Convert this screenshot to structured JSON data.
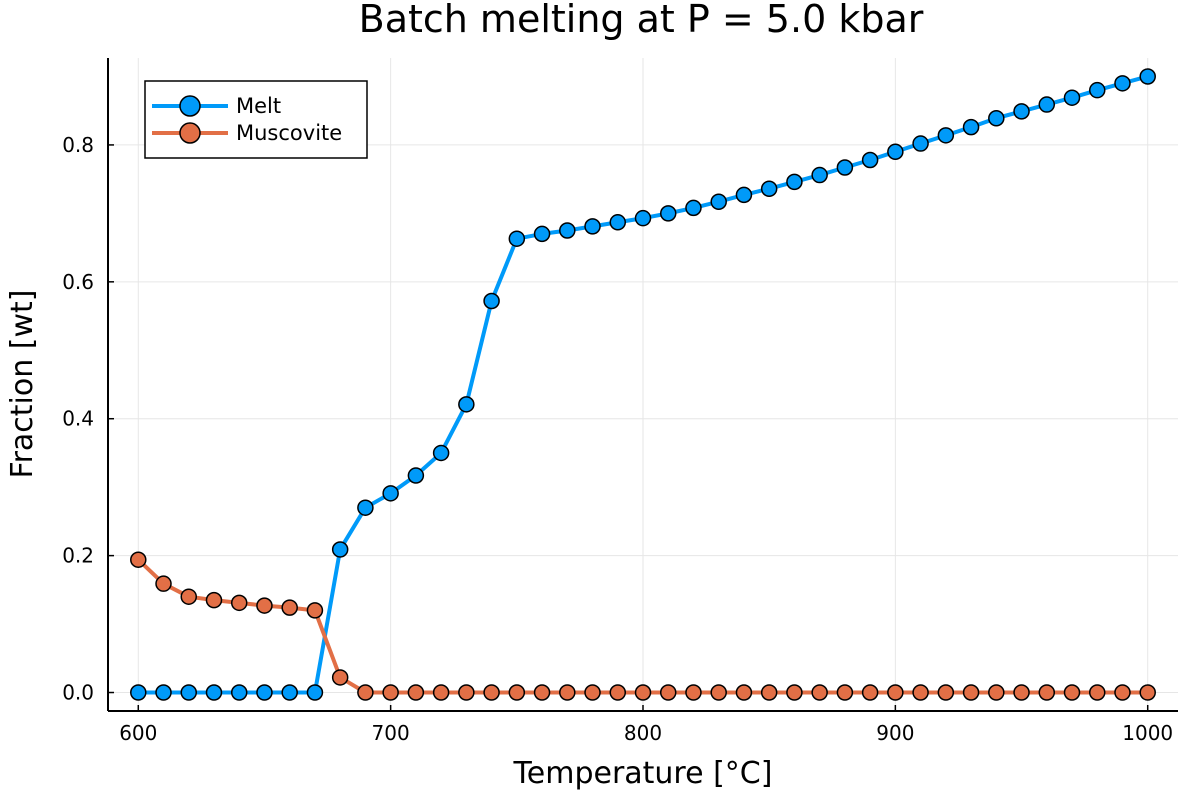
{
  "chart_data": {
    "type": "line",
    "title": "Batch melting at P = 5.0 kbar",
    "xlabel": "Temperature [°C]",
    "ylabel": "Fraction [wt]",
    "xlim": [
      588,
      1012
    ],
    "ylim": [
      -0.027,
      0.927
    ],
    "xticks": [
      600,
      700,
      800,
      900,
      1000
    ],
    "yticks": [
      0.0,
      0.2,
      0.4,
      0.6,
      0.8
    ],
    "xtick_labels": [
      "600",
      "700",
      "800",
      "900",
      "1000"
    ],
    "ytick_labels": [
      "0.0",
      "0.2",
      "0.4",
      "0.6",
      "0.8"
    ],
    "grid": true,
    "legend_position": "top-left",
    "x": [
      600,
      610,
      620,
      630,
      640,
      650,
      660,
      670,
      680,
      690,
      700,
      710,
      720,
      730,
      740,
      750,
      760,
      770,
      780,
      790,
      800,
      810,
      820,
      830,
      840,
      850,
      860,
      870,
      880,
      890,
      900,
      910,
      920,
      930,
      940,
      950,
      960,
      970,
      980,
      990,
      1000
    ],
    "series": [
      {
        "name": "Melt",
        "color": "#009af9",
        "values": [
          0,
          0,
          0,
          0,
          0,
          0,
          0,
          0,
          0.209,
          0.27,
          0.291,
          0.317,
          0.35,
          0.421,
          0.572,
          0.663,
          0.67,
          0.675,
          0.681,
          0.687,
          0.693,
          0.7,
          0.708,
          0.717,
          0.727,
          0.736,
          0.746,
          0.756,
          0.767,
          0.778,
          0.79,
          0.802,
          0.814,
          0.826,
          0.839,
          0.849,
          0.859,
          0.869,
          0.88,
          0.89,
          0.9
        ]
      },
      {
        "name": "Muscovite",
        "color": "#e26f46",
        "values": [
          0.194,
          0.159,
          0.14,
          0.135,
          0.131,
          0.127,
          0.124,
          0.12,
          0.022,
          0,
          0,
          0,
          0,
          0,
          0,
          0,
          0,
          0,
          0,
          0,
          0,
          0,
          0,
          0,
          0,
          0,
          0,
          0,
          0,
          0,
          0,
          0,
          0,
          0,
          0,
          0,
          0,
          0,
          0,
          0,
          0
        ]
      }
    ]
  }
}
